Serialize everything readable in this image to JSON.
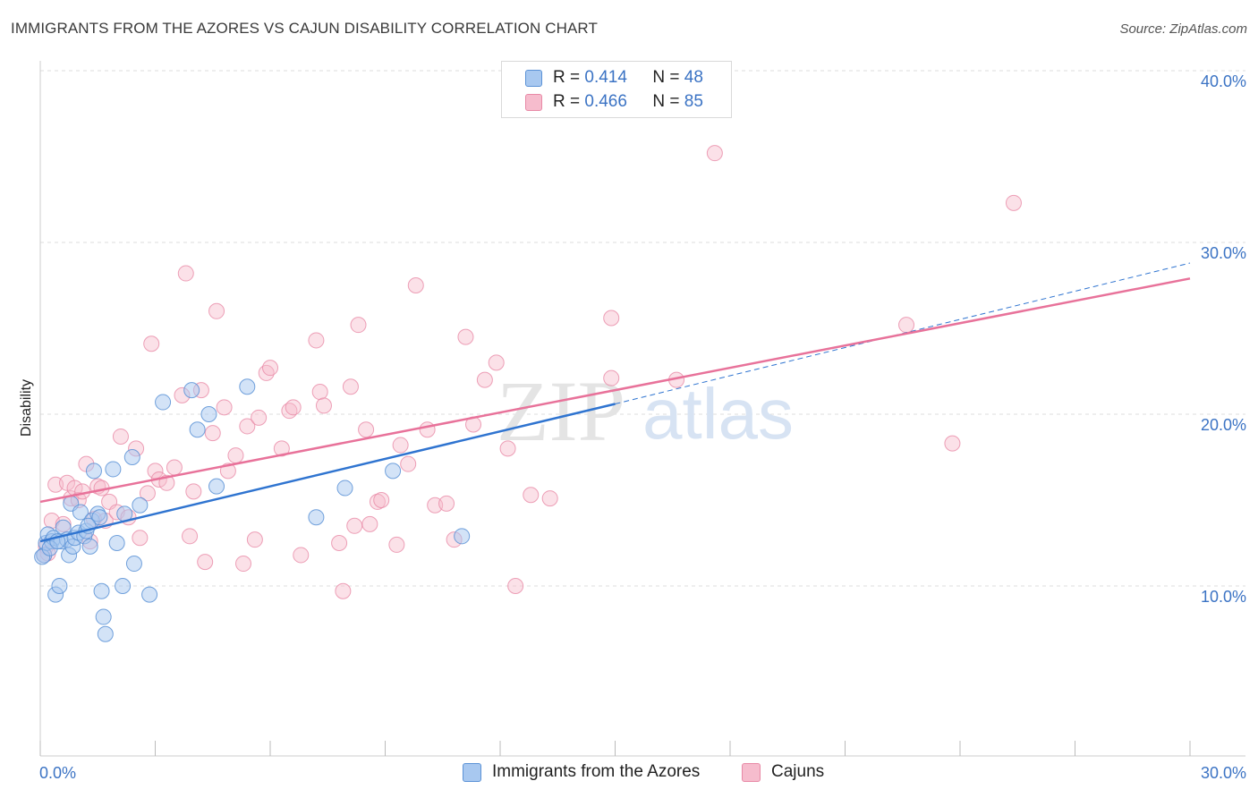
{
  "title": "IMMIGRANTS FROM THE AZORES VS CAJUN DISABILITY CORRELATION CHART",
  "source": "Source: ZipAtlas.com",
  "watermark": {
    "zip": "ZIP",
    "atlas": "atlas"
  },
  "colors": {
    "azores_fill": "#a8c8f0",
    "azores_stroke": "#5b92d6",
    "azores_line": "#2f74d0",
    "cajun_fill": "#f6bccd",
    "cajun_stroke": "#e889a6",
    "cajun_line": "#e8729a",
    "grid": "#dddddd",
    "tick_label": "#3b73c4"
  },
  "legend": {
    "rows": [
      {
        "r_label": "R = ",
        "r_value": "0.414",
        "n_label": "N = ",
        "n_value": "48"
      },
      {
        "r_label": "R = ",
        "r_value": "0.466",
        "n_label": "N = ",
        "n_value": "85"
      }
    ]
  },
  "bottom_legend": {
    "azores": "Immigrants from the Azores",
    "cajun": "Cajuns"
  },
  "chart_data": {
    "type": "scatter",
    "ylabel": "Disability",
    "xlabel": "",
    "xlim": [
      0,
      30
    ],
    "ylim": [
      0,
      40
    ],
    "x_tick_labels": [
      {
        "value": 0,
        "label": "0.0%"
      },
      {
        "value": 30,
        "label": "30.0%"
      }
    ],
    "y_tick_labels": [
      {
        "value": 10,
        "label": "10.0%"
      },
      {
        "value": 20,
        "label": "20.0%"
      },
      {
        "value": 30,
        "label": "30.0%"
      },
      {
        "value": 40,
        "label": "40.0%"
      }
    ],
    "series": [
      {
        "name": "Immigrants from the Azores",
        "R": 0.414,
        "N": 48,
        "trend": {
          "x0": 0,
          "y0": 12.6,
          "x1": 15.0,
          "y1": 20.6,
          "dash_to_x": 30,
          "dash_to_y": 28.8
        },
        "points": [
          [
            0.1,
            11.8
          ],
          [
            0.15,
            12.5
          ],
          [
            0.2,
            13.0
          ],
          [
            0.3,
            12.6
          ],
          [
            0.35,
            12.8
          ],
          [
            0.4,
            9.5
          ],
          [
            0.5,
            10.0
          ],
          [
            0.55,
            12.6
          ],
          [
            0.6,
            13.4
          ],
          [
            0.7,
            12.7
          ],
          [
            0.75,
            11.8
          ],
          [
            0.8,
            14.8
          ],
          [
            0.85,
            12.3
          ],
          [
            0.9,
            12.8
          ],
          [
            1.0,
            13.1
          ],
          [
            1.05,
            14.3
          ],
          [
            1.15,
            12.9
          ],
          [
            1.2,
            13.2
          ],
          [
            1.3,
            12.3
          ],
          [
            1.35,
            13.8
          ],
          [
            1.4,
            16.7
          ],
          [
            1.5,
            14.2
          ],
          [
            1.55,
            14.0
          ],
          [
            1.6,
            9.7
          ],
          [
            1.65,
            8.2
          ],
          [
            1.7,
            7.2
          ],
          [
            1.9,
            16.8
          ],
          [
            2.0,
            12.5
          ],
          [
            2.15,
            10.0
          ],
          [
            2.2,
            14.2
          ],
          [
            2.4,
            17.5
          ],
          [
            2.45,
            11.3
          ],
          [
            2.6,
            14.7
          ],
          [
            2.85,
            9.5
          ],
          [
            3.2,
            20.7
          ],
          [
            3.95,
            21.4
          ],
          [
            4.1,
            19.1
          ],
          [
            4.4,
            20.0
          ],
          [
            4.6,
            15.8
          ],
          [
            5.4,
            21.6
          ],
          [
            7.2,
            14.0
          ],
          [
            7.95,
            15.7
          ],
          [
            9.2,
            16.7
          ],
          [
            11.0,
            12.9
          ],
          [
            0.05,
            11.7
          ],
          [
            0.25,
            12.2
          ],
          [
            0.45,
            12.6
          ],
          [
            1.25,
            13.5
          ]
        ]
      },
      {
        "name": "Cajuns",
        "R": 0.466,
        "N": 85,
        "trend": {
          "x0": 0,
          "y0": 14.9,
          "x1": 30,
          "y1": 27.9
        },
        "points": [
          [
            0.1,
            11.8
          ],
          [
            0.15,
            12.3
          ],
          [
            0.2,
            11.9
          ],
          [
            0.3,
            13.8
          ],
          [
            0.4,
            15.9
          ],
          [
            0.6,
            13.6
          ],
          [
            0.7,
            16.0
          ],
          [
            0.8,
            15.1
          ],
          [
            0.9,
            15.7
          ],
          [
            1.0,
            15.0
          ],
          [
            1.1,
            15.5
          ],
          [
            1.2,
            17.1
          ],
          [
            1.3,
            12.6
          ],
          [
            1.4,
            13.9
          ],
          [
            1.5,
            15.8
          ],
          [
            1.6,
            15.7
          ],
          [
            1.7,
            13.8
          ],
          [
            1.8,
            14.9
          ],
          [
            2.0,
            14.3
          ],
          [
            2.1,
            18.7
          ],
          [
            2.3,
            14.0
          ],
          [
            2.5,
            18.0
          ],
          [
            2.6,
            12.8
          ],
          [
            2.8,
            15.4
          ],
          [
            2.9,
            24.1
          ],
          [
            3.0,
            16.7
          ],
          [
            3.1,
            16.2
          ],
          [
            3.3,
            16.0
          ],
          [
            3.5,
            16.9
          ],
          [
            3.7,
            21.1
          ],
          [
            3.8,
            28.2
          ],
          [
            3.9,
            12.9
          ],
          [
            4.0,
            15.5
          ],
          [
            4.2,
            21.4
          ],
          [
            4.3,
            11.4
          ],
          [
            4.5,
            18.9
          ],
          [
            4.6,
            26.0
          ],
          [
            4.8,
            20.4
          ],
          [
            4.9,
            16.7
          ],
          [
            5.1,
            17.6
          ],
          [
            5.3,
            11.3
          ],
          [
            5.4,
            19.3
          ],
          [
            5.6,
            12.7
          ],
          [
            5.7,
            19.8
          ],
          [
            5.9,
            22.4
          ],
          [
            6.0,
            22.7
          ],
          [
            6.3,
            18.0
          ],
          [
            6.5,
            20.2
          ],
          [
            6.6,
            20.4
          ],
          [
            6.8,
            11.8
          ],
          [
            7.2,
            24.3
          ],
          [
            7.3,
            21.3
          ],
          [
            7.4,
            20.5
          ],
          [
            7.8,
            12.5
          ],
          [
            7.9,
            9.7
          ],
          [
            8.1,
            21.6
          ],
          [
            8.2,
            13.5
          ],
          [
            8.3,
            25.2
          ],
          [
            8.5,
            19.1
          ],
          [
            8.6,
            13.6
          ],
          [
            8.8,
            14.9
          ],
          [
            8.9,
            15.0
          ],
          [
            9.3,
            12.4
          ],
          [
            9.4,
            18.2
          ],
          [
            9.6,
            17.1
          ],
          [
            9.8,
            27.5
          ],
          [
            10.1,
            19.1
          ],
          [
            10.3,
            14.7
          ],
          [
            10.6,
            14.8
          ],
          [
            10.8,
            12.7
          ],
          [
            11.1,
            24.5
          ],
          [
            11.3,
            19.4
          ],
          [
            11.6,
            22.0
          ],
          [
            11.9,
            23.0
          ],
          [
            12.2,
            18.0
          ],
          [
            12.4,
            10.0
          ],
          [
            12.8,
            15.3
          ],
          [
            13.3,
            15.1
          ],
          [
            14.9,
            25.6
          ],
          [
            14.9,
            22.1
          ],
          [
            16.6,
            22.0
          ],
          [
            17.6,
            35.2
          ],
          [
            22.6,
            25.2
          ],
          [
            23.8,
            18.3
          ],
          [
            25.4,
            32.3
          ]
        ]
      }
    ]
  }
}
